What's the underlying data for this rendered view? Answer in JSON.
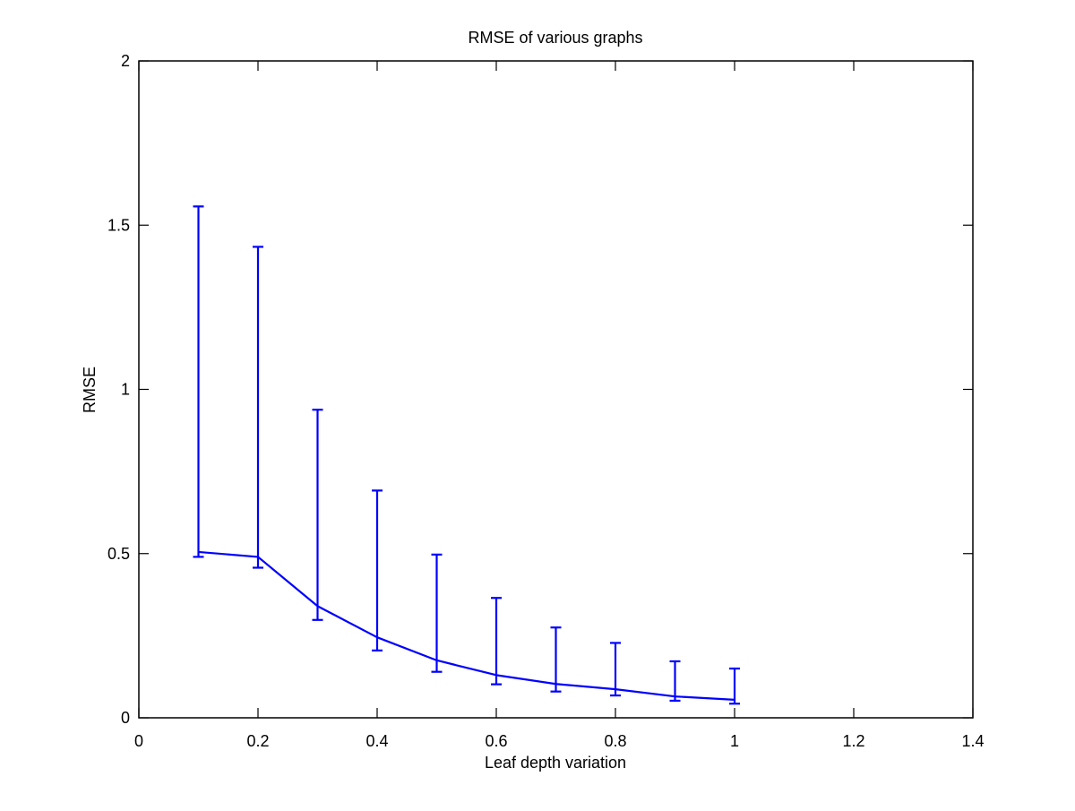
{
  "chart_data": {
    "type": "line",
    "title": "RMSE of various graphs",
    "xlabel": "Leaf depth variation",
    "ylabel": "RMSE",
    "xlim": [
      0,
      1.4
    ],
    "ylim": [
      0,
      2
    ],
    "x_ticks": [
      0,
      0.2,
      0.4,
      0.6,
      0.8,
      1,
      1.2,
      1.4
    ],
    "x_tick_labels": [
      "0",
      "0.2",
      "0.4",
      "0.6",
      "0.8",
      "1",
      "1.2",
      "1.4"
    ],
    "y_ticks": [
      0,
      0.5,
      1,
      1.5,
      2
    ],
    "y_tick_labels": [
      "0",
      "0.5",
      "1",
      "1.5",
      "2"
    ],
    "grid": false,
    "legend": "none",
    "series": [
      {
        "color": "#0000ff",
        "x": [
          0.1,
          0.2,
          0.3,
          0.4,
          0.5,
          0.6,
          0.7,
          0.8,
          0.9,
          1.0
        ],
        "y": [
          0.505,
          0.49,
          0.34,
          0.245,
          0.175,
          0.13,
          0.103,
          0.087,
          0.065,
          0.055
        ],
        "err_low": [
          0.49,
          0.457,
          0.298,
          0.205,
          0.14,
          0.102,
          0.08,
          0.068,
          0.052,
          0.043
        ],
        "err_high": [
          1.557,
          1.434,
          0.938,
          0.692,
          0.497,
          0.365,
          0.275,
          0.228,
          0.172,
          0.15
        ]
      }
    ]
  }
}
